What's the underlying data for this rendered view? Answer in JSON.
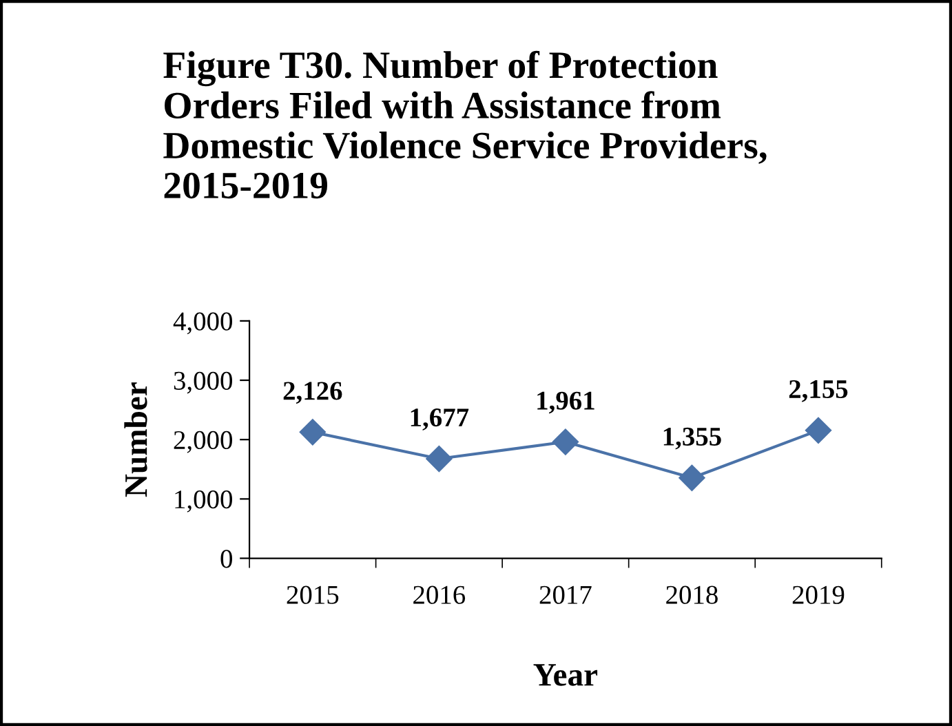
{
  "chart_data": {
    "type": "line",
    "title": "Figure T30. Number of Protection\nOrders Filed with Assistance from\nDomestic Violence Service Providers,\n2015-2019",
    "xlabel": "Year",
    "ylabel": "Number",
    "categories": [
      "2015",
      "2016",
      "2017",
      "2018",
      "2019"
    ],
    "series": [
      {
        "color": "#4a72a8",
        "values": [
          2126,
          1677,
          1961,
          1355,
          2155
        ]
      }
    ],
    "value_labels": [
      "2,126",
      "1,677",
      "1,961",
      "1,355",
      "2,155"
    ],
    "ylim": [
      0,
      4000
    ],
    "yticks": [
      {
        "value": 0,
        "label": "0"
      },
      {
        "value": 1000,
        "label": "1,000"
      },
      {
        "value": 2000,
        "label": "2,000"
      },
      {
        "value": 3000,
        "label": "3,000"
      },
      {
        "value": 4000,
        "label": "4,000"
      }
    ],
    "marker": "diamond",
    "line_style": "solid",
    "grid": false,
    "legend": false
  }
}
